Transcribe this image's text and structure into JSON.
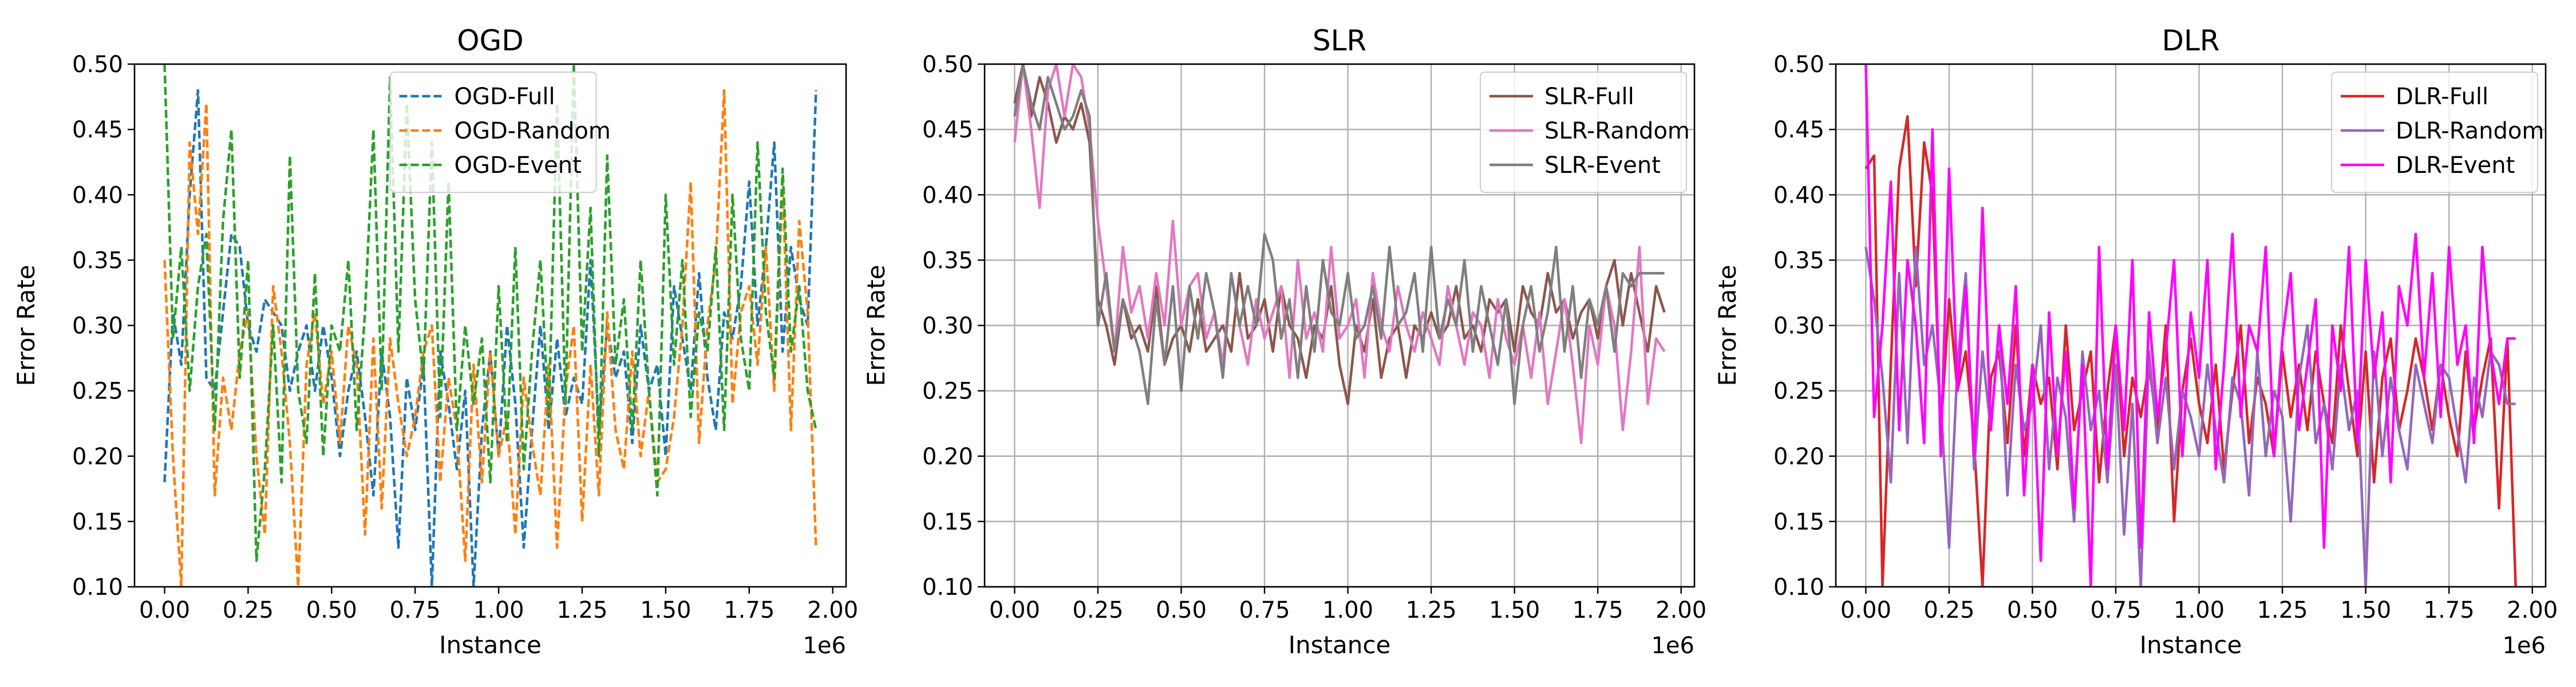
{
  "chart_data": [
    {
      "type": "line",
      "title": "OGD",
      "xlabel": "Instance",
      "ylabel": "Error Rate",
      "x_offset_label": "1e6",
      "xlim": [
        -0.09,
        2.04
      ],
      "ylim": [
        0.1,
        0.5
      ],
      "xticks": [
        "0.00",
        "0.25",
        "0.50",
        "0.75",
        "1.00",
        "1.25",
        "1.50",
        "1.75",
        "2.00"
      ],
      "yticks": [
        "0.10",
        "0.15",
        "0.20",
        "0.25",
        "0.30",
        "0.35",
        "0.40",
        "0.45",
        "0.50"
      ],
      "grid": false,
      "legend": "upper center",
      "x": [
        0.0,
        0.025,
        0.05,
        0.075,
        0.1,
        0.125,
        0.15,
        0.175,
        0.2,
        0.225,
        0.25,
        0.275,
        0.3,
        0.325,
        0.35,
        0.375,
        0.4,
        0.425,
        0.45,
        0.475,
        0.5,
        0.525,
        0.55,
        0.575,
        0.6,
        0.625,
        0.65,
        0.675,
        0.7,
        0.725,
        0.75,
        0.775,
        0.8,
        0.825,
        0.85,
        0.875,
        0.9,
        0.925,
        0.95,
        0.975,
        1.0,
        1.025,
        1.05,
        1.075,
        1.1,
        1.125,
        1.15,
        1.175,
        1.2,
        1.225,
        1.25,
        1.275,
        1.3,
        1.325,
        1.35,
        1.375,
        1.4,
        1.425,
        1.45,
        1.475,
        1.5,
        1.525,
        1.55,
        1.575,
        1.6,
        1.625,
        1.65,
        1.675,
        1.7,
        1.725,
        1.75,
        1.775,
        1.8,
        1.825,
        1.85,
        1.875,
        1.9,
        1.925,
        1.95
      ],
      "series": [
        {
          "name": "OGD-Full",
          "color": "#1f77b4",
          "dash": "dashed",
          "values": [
            0.18,
            0.31,
            0.27,
            0.4,
            0.48,
            0.26,
            0.25,
            0.31,
            0.37,
            0.36,
            0.3,
            0.28,
            0.32,
            0.31,
            0.3,
            0.25,
            0.28,
            0.3,
            0.25,
            0.3,
            0.26,
            0.2,
            0.25,
            0.28,
            0.23,
            0.17,
            0.28,
            0.23,
            0.13,
            0.26,
            0.22,
            0.27,
            0.1,
            0.28,
            0.24,
            0.19,
            0.25,
            0.1,
            0.22,
            0.28,
            0.2,
            0.3,
            0.24,
            0.13,
            0.22,
            0.3,
            0.22,
            0.29,
            0.23,
            0.26,
            0.24,
            0.35,
            0.22,
            0.3,
            0.26,
            0.28,
            0.21,
            0.3,
            0.25,
            0.27,
            0.2,
            0.33,
            0.29,
            0.25,
            0.34,
            0.26,
            0.22,
            0.31,
            0.29,
            0.33,
            0.41,
            0.3,
            0.36,
            0.44,
            0.28,
            0.36,
            0.32,
            0.3,
            0.48
          ]
        },
        {
          "name": "OGD-Random",
          "color": "#ff7f0e",
          "dash": "dashed",
          "values": [
            0.35,
            0.2,
            0.1,
            0.44,
            0.37,
            0.47,
            0.17,
            0.26,
            0.22,
            0.28,
            0.31,
            0.2,
            0.14,
            0.33,
            0.28,
            0.21,
            0.1,
            0.27,
            0.31,
            0.24,
            0.28,
            0.21,
            0.3,
            0.27,
            0.14,
            0.29,
            0.16,
            0.29,
            0.24,
            0.2,
            0.23,
            0.28,
            0.3,
            0.18,
            0.26,
            0.22,
            0.12,
            0.27,
            0.18,
            0.28,
            0.2,
            0.23,
            0.14,
            0.26,
            0.21,
            0.17,
            0.27,
            0.13,
            0.25,
            0.3,
            0.15,
            0.27,
            0.17,
            0.31,
            0.22,
            0.19,
            0.28,
            0.2,
            0.25,
            0.18,
            0.19,
            0.23,
            0.3,
            0.41,
            0.21,
            0.3,
            0.35,
            0.48,
            0.24,
            0.31,
            0.33,
            0.27,
            0.36,
            0.25,
            0.41,
            0.22,
            0.38,
            0.31,
            0.13
          ]
        },
        {
          "name": "OGD-Event",
          "color": "#2ca02c",
          "dash": "dashed",
          "values": [
            0.5,
            0.29,
            0.36,
            0.25,
            0.33,
            0.37,
            0.22,
            0.38,
            0.45,
            0.26,
            0.35,
            0.12,
            0.19,
            0.3,
            0.18,
            0.43,
            0.25,
            0.21,
            0.34,
            0.2,
            0.3,
            0.28,
            0.35,
            0.22,
            0.31,
            0.45,
            0.25,
            0.49,
            0.28,
            0.47,
            0.32,
            0.26,
            0.44,
            0.23,
            0.41,
            0.22,
            0.3,
            0.24,
            0.29,
            0.18,
            0.33,
            0.21,
            0.36,
            0.19,
            0.28,
            0.35,
            0.23,
            0.47,
            0.24,
            0.5,
            0.28,
            0.39,
            0.2,
            0.43,
            0.27,
            0.32,
            0.22,
            0.35,
            0.25,
            0.17,
            0.4,
            0.27,
            0.35,
            0.23,
            0.31,
            0.28,
            0.36,
            0.22,
            0.4,
            0.29,
            0.25,
            0.44,
            0.31,
            0.26,
            0.42,
            0.28,
            0.33,
            0.25,
            0.22
          ]
        }
      ]
    },
    {
      "type": "line",
      "title": "SLR",
      "xlabel": "Instance",
      "ylabel": "Error Rate",
      "x_offset_label": "1e6",
      "xlim": [
        -0.09,
        2.04
      ],
      "ylim": [
        0.1,
        0.5
      ],
      "xticks": [
        "0.00",
        "0.25",
        "0.50",
        "0.75",
        "1.00",
        "1.25",
        "1.50",
        "1.75",
        "2.00"
      ],
      "yticks": [
        "0.10",
        "0.15",
        "0.20",
        "0.25",
        "0.30",
        "0.35",
        "0.40",
        "0.45",
        "0.50"
      ],
      "grid": true,
      "legend": "upper right",
      "x": [
        0.0,
        0.025,
        0.05,
        0.075,
        0.1,
        0.125,
        0.15,
        0.175,
        0.2,
        0.225,
        0.25,
        0.275,
        0.3,
        0.325,
        0.35,
        0.375,
        0.4,
        0.425,
        0.45,
        0.475,
        0.5,
        0.525,
        0.55,
        0.575,
        0.6,
        0.625,
        0.65,
        0.675,
        0.7,
        0.725,
        0.75,
        0.775,
        0.8,
        0.825,
        0.85,
        0.875,
        0.9,
        0.925,
        0.95,
        0.975,
        1.0,
        1.025,
        1.05,
        1.075,
        1.1,
        1.125,
        1.15,
        1.175,
        1.2,
        1.225,
        1.25,
        1.275,
        1.3,
        1.325,
        1.35,
        1.375,
        1.4,
        1.425,
        1.45,
        1.475,
        1.5,
        1.525,
        1.55,
        1.575,
        1.6,
        1.625,
        1.65,
        1.675,
        1.7,
        1.725,
        1.75,
        1.775,
        1.8,
        1.825,
        1.85,
        1.875,
        1.9,
        1.925,
        1.95
      ],
      "series": [
        {
          "name": "SLR-Full",
          "color": "#8c564b",
          "dash": "solid",
          "values": [
            0.47,
            0.5,
            0.46,
            0.49,
            0.47,
            0.44,
            0.46,
            0.45,
            0.47,
            0.44,
            0.32,
            0.3,
            0.27,
            0.32,
            0.29,
            0.3,
            0.28,
            0.33,
            0.27,
            0.29,
            0.3,
            0.28,
            0.32,
            0.28,
            0.29,
            0.3,
            0.28,
            0.34,
            0.29,
            0.3,
            0.32,
            0.28,
            0.33,
            0.3,
            0.29,
            0.26,
            0.3,
            0.29,
            0.33,
            0.27,
            0.24,
            0.3,
            0.28,
            0.32,
            0.26,
            0.29,
            0.3,
            0.26,
            0.3,
            0.29,
            0.31,
            0.29,
            0.3,
            0.33,
            0.29,
            0.3,
            0.28,
            0.32,
            0.31,
            0.32,
            0.28,
            0.33,
            0.31,
            0.3,
            0.34,
            0.31,
            0.32,
            0.29,
            0.31,
            0.32,
            0.29,
            0.33,
            0.35,
            0.3,
            0.34,
            0.31,
            0.28,
            0.33,
            0.31
          ]
        },
        {
          "name": "SLR-Random",
          "color": "#e377c2",
          "dash": "solid",
          "values": [
            0.44,
            0.5,
            0.45,
            0.39,
            0.48,
            0.5,
            0.46,
            0.5,
            0.49,
            0.45,
            0.38,
            0.33,
            0.28,
            0.36,
            0.31,
            0.33,
            0.29,
            0.34,
            0.3,
            0.38,
            0.3,
            0.33,
            0.34,
            0.29,
            0.31,
            0.27,
            0.34,
            0.3,
            0.27,
            0.32,
            0.29,
            0.31,
            0.33,
            0.26,
            0.35,
            0.29,
            0.31,
            0.28,
            0.36,
            0.29,
            0.3,
            0.32,
            0.26,
            0.34,
            0.3,
            0.28,
            0.33,
            0.3,
            0.28,
            0.31,
            0.29,
            0.27,
            0.33,
            0.3,
            0.27,
            0.31,
            0.3,
            0.26,
            0.32,
            0.29,
            0.27,
            0.3,
            0.26,
            0.31,
            0.24,
            0.28,
            0.32,
            0.27,
            0.21,
            0.3,
            0.27,
            0.33,
            0.3,
            0.22,
            0.28,
            0.36,
            0.24,
            0.29,
            0.28
          ]
        },
        {
          "name": "SLR-Event",
          "color": "#7f7f7f",
          "dash": "solid",
          "values": [
            0.46,
            0.5,
            0.47,
            0.45,
            0.49,
            0.47,
            0.45,
            0.46,
            0.48,
            0.46,
            0.3,
            0.34,
            0.28,
            0.32,
            0.3,
            0.28,
            0.24,
            0.32,
            0.27,
            0.33,
            0.25,
            0.33,
            0.29,
            0.34,
            0.31,
            0.26,
            0.34,
            0.3,
            0.33,
            0.3,
            0.37,
            0.35,
            0.29,
            0.32,
            0.26,
            0.33,
            0.28,
            0.35,
            0.31,
            0.3,
            0.34,
            0.29,
            0.3,
            0.33,
            0.29,
            0.36,
            0.3,
            0.31,
            0.34,
            0.28,
            0.36,
            0.29,
            0.32,
            0.3,
            0.35,
            0.28,
            0.33,
            0.3,
            0.27,
            0.32,
            0.24,
            0.3,
            0.33,
            0.28,
            0.31,
            0.36,
            0.28,
            0.33,
            0.26,
            0.32,
            0.3,
            0.33,
            0.28,
            0.34,
            0.33,
            0.34,
            0.34,
            0.34,
            0.34
          ]
        }
      ]
    },
    {
      "type": "line",
      "title": "DLR",
      "xlabel": "Instance",
      "ylabel": "Error Rate",
      "x_offset_label": "1e6",
      "xlim": [
        -0.09,
        2.04
      ],
      "ylim": [
        0.1,
        0.5
      ],
      "xticks": [
        "0.00",
        "0.25",
        "0.50",
        "0.75",
        "1.00",
        "1.25",
        "1.50",
        "1.75",
        "2.00"
      ],
      "yticks": [
        "0.10",
        "0.15",
        "0.20",
        "0.25",
        "0.30",
        "0.35",
        "0.40",
        "0.45",
        "0.50"
      ],
      "grid": true,
      "legend": "upper right",
      "x": [
        0.0,
        0.025,
        0.05,
        0.075,
        0.1,
        0.125,
        0.15,
        0.175,
        0.2,
        0.225,
        0.25,
        0.275,
        0.3,
        0.325,
        0.35,
        0.375,
        0.4,
        0.425,
        0.45,
        0.475,
        0.5,
        0.525,
        0.55,
        0.575,
        0.6,
        0.625,
        0.65,
        0.675,
        0.7,
        0.725,
        0.75,
        0.775,
        0.8,
        0.825,
        0.85,
        0.875,
        0.9,
        0.925,
        0.95,
        0.975,
        1.0,
        1.025,
        1.05,
        1.075,
        1.1,
        1.125,
        1.15,
        1.175,
        1.2,
        1.225,
        1.25,
        1.275,
        1.3,
        1.325,
        1.35,
        1.375,
        1.4,
        1.425,
        1.45,
        1.475,
        1.5,
        1.525,
        1.55,
        1.575,
        1.6,
        1.625,
        1.65,
        1.675,
        1.7,
        1.725,
        1.75,
        1.775,
        1.8,
        1.825,
        1.85,
        1.875,
        1.9,
        1.925,
        1.95
      ],
      "series": [
        {
          "name": "DLR-Full",
          "color": "#d62728",
          "dash": "solid",
          "values": [
            0.42,
            0.43,
            0.1,
            0.27,
            0.42,
            0.46,
            0.33,
            0.44,
            0.4,
            0.22,
            0.32,
            0.25,
            0.28,
            0.21,
            0.1,
            0.26,
            0.28,
            0.21,
            0.3,
            0.2,
            0.27,
            0.24,
            0.26,
            0.19,
            0.3,
            0.22,
            0.25,
            0.28,
            0.18,
            0.25,
            0.3,
            0.2,
            0.26,
            0.23,
            0.27,
            0.22,
            0.3,
            0.15,
            0.25,
            0.29,
            0.24,
            0.21,
            0.27,
            0.19,
            0.25,
            0.3,
            0.21,
            0.26,
            0.24,
            0.2,
            0.28,
            0.23,
            0.27,
            0.22,
            0.28,
            0.24,
            0.21,
            0.3,
            0.25,
            0.2,
            0.28,
            0.18,
            0.26,
            0.29,
            0.22,
            0.25,
            0.29,
            0.26,
            0.22,
            0.27,
            0.23,
            0.2,
            0.28,
            0.22,
            0.26,
            0.29,
            0.16,
            0.29,
            0.1
          ]
        },
        {
          "name": "DLR-Random",
          "color": "#9467bd",
          "dash": "solid",
          "values": [
            0.36,
            0.32,
            0.26,
            0.18,
            0.34,
            0.21,
            0.36,
            0.27,
            0.3,
            0.24,
            0.13,
            0.27,
            0.34,
            0.19,
            0.28,
            0.22,
            0.3,
            0.17,
            0.27,
            0.22,
            0.24,
            0.3,
            0.19,
            0.26,
            0.23,
            0.15,
            0.28,
            0.22,
            0.25,
            0.18,
            0.27,
            0.14,
            0.24,
            0.1,
            0.28,
            0.21,
            0.26,
            0.19,
            0.25,
            0.23,
            0.2,
            0.27,
            0.22,
            0.18,
            0.26,
            0.24,
            0.17,
            0.28,
            0.2,
            0.25,
            0.23,
            0.15,
            0.26,
            0.3,
            0.21,
            0.24,
            0.19,
            0.27,
            0.22,
            0.25,
            0.1,
            0.28,
            0.2,
            0.26,
            0.22,
            0.19,
            0.27,
            0.24,
            0.21,
            0.27,
            0.26,
            0.22,
            0.18,
            0.26,
            0.23,
            0.28,
            0.27,
            0.24,
            0.24
          ]
        },
        {
          "name": "DLR-Event",
          "color": "#ff00ff",
          "dash": "solid",
          "values": [
            0.5,
            0.23,
            0.3,
            0.41,
            0.22,
            0.35,
            0.3,
            0.21,
            0.45,
            0.2,
            0.42,
            0.25,
            0.33,
            0.2,
            0.39,
            0.22,
            0.3,
            0.24,
            0.33,
            0.17,
            0.27,
            0.12,
            0.31,
            0.2,
            0.28,
            0.16,
            0.27,
            0.1,
            0.36,
            0.19,
            0.3,
            0.22,
            0.35,
            0.13,
            0.31,
            0.23,
            0.28,
            0.35,
            0.2,
            0.31,
            0.26,
            0.35,
            0.19,
            0.27,
            0.37,
            0.23,
            0.3,
            0.28,
            0.36,
            0.2,
            0.29,
            0.34,
            0.22,
            0.27,
            0.32,
            0.13,
            0.3,
            0.25,
            0.36,
            0.21,
            0.35,
            0.26,
            0.31,
            0.18,
            0.33,
            0.3,
            0.37,
            0.26,
            0.34,
            0.23,
            0.36,
            0.27,
            0.3,
            0.21,
            0.36,
            0.28,
            0.24,
            0.29,
            0.29
          ]
        }
      ]
    }
  ]
}
